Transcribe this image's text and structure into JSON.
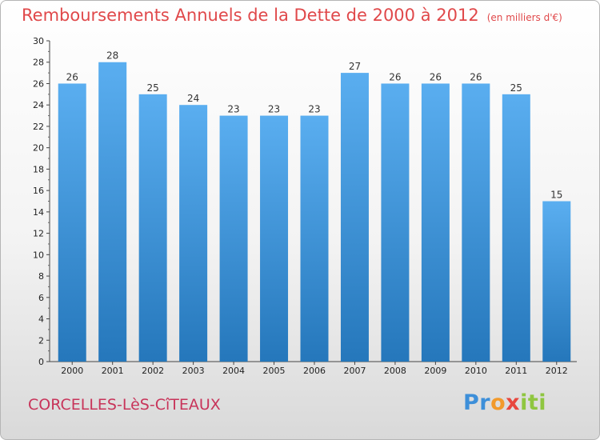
{
  "chart_data": {
    "type": "bar",
    "title": "Remboursements Annuels de la Dette de 2000 à 2012",
    "unit": "(en milliers d'€)",
    "categories": [
      "2000",
      "2001",
      "2002",
      "2003",
      "2004",
      "2005",
      "2006",
      "2007",
      "2008",
      "2009",
      "2010",
      "2011",
      "2012"
    ],
    "values": [
      26,
      28,
      25,
      24,
      23,
      23,
      23,
      27,
      26,
      26,
      26,
      25,
      15
    ],
    "ylim": [
      0,
      30
    ],
    "yticks": [
      0,
      2,
      4,
      6,
      8,
      10,
      12,
      14,
      16,
      18,
      20,
      22,
      24,
      26,
      28,
      30
    ],
    "grid": false,
    "bar_color": "#3b8fd4"
  },
  "commune": "CORCELLES-LèS-CîTEAUX",
  "logo": "Proxiti"
}
